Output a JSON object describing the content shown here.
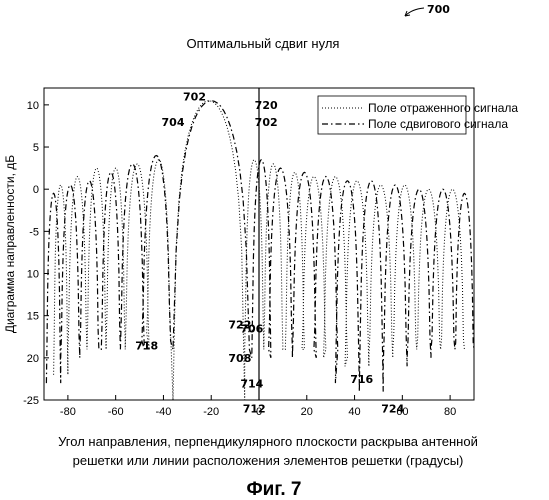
{
  "figure": {
    "ref_number": "700",
    "caption": "Фиг. 7"
  },
  "chart_data": {
    "type": "line",
    "title": "Оптимальный сдвиг нуля",
    "xlabel_line1": "Угол направления, перпендикулярного плоскости раскрыва антенной",
    "xlabel_line2": "решетки или линии расположения элементов решетки (градусы)",
    "ylabel": "Диаграмма направленности, дБ",
    "xlim": [
      -90,
      90
    ],
    "ylim": [
      -25,
      12
    ],
    "x_ticks": [
      -80,
      -60,
      -40,
      -20,
      0,
      20,
      40,
      60,
      80
    ],
    "y ticks": [
      10,
      5,
      0,
      -5,
      -10,
      -15,
      -20,
      -25
    ],
    "y_tick_labels": [
      "10",
      "5",
      "0",
      "-5",
      "10",
      "15",
      "20",
      "-25"
    ],
    "grid": false,
    "legend_position": "top-right",
    "vertical_marker_x": 0,
    "series": [
      {
        "name": "Поле отраженного сигнала",
        "style": "dotted",
        "color": "#000000",
        "main_lobe": {
          "center": -21,
          "halfwidth": 15,
          "peak": 10.5
        },
        "sidelobes": [
          {
            "x": -83,
            "peak": 0.5,
            "null_after": -80
          },
          {
            "x": -76,
            "peak": 1.5,
            "null_after": -72
          },
          {
            "x": -68,
            "peak": 2.5,
            "null_after": -64
          },
          {
            "x": -60,
            "peak": 2.5,
            "null_after": -56
          },
          {
            "x": -51,
            "peak": 3.0,
            "null_after": -46
          },
          {
            "x": -42,
            "peak": 3.5,
            "null_after": -37
          },
          {
            "x": -2,
            "peak": 3.5,
            "null_after": 2
          },
          {
            "x": 6,
            "peak": 3.0,
            "null_after": 10
          },
          {
            "x": 15,
            "peak": 2.0,
            "null_after": 19
          },
          {
            "x": 23,
            "peak": 1.5,
            "null_after": 28
          },
          {
            "x": 32,
            "peak": 1.5,
            "null_after": 37
          },
          {
            "x": 41,
            "peak": 1.0,
            "null_after": 46
          },
          {
            "x": 51,
            "peak": 0.5,
            "null_after": 56
          },
          {
            "x": 61,
            "peak": 0.5,
            "null_after": 66
          },
          {
            "x": 71,
            "peak": 0.0,
            "null_after": 76
          },
          {
            "x": 81,
            "peak": 0.0,
            "null_after": 86
          }
        ],
        "null_depths": [
          -22,
          -19,
          -19,
          -18,
          -19,
          -17,
          -25,
          -19,
          -19,
          -19,
          -19,
          -20,
          -21,
          -20,
          -19,
          -19
        ]
      },
      {
        "name": "Поле сдвигового сигнала",
        "style": "dash-dot",
        "color": "#000000",
        "main_lobe": {
          "center": -20,
          "halfwidth": 16,
          "peak": 10.5
        },
        "sidelobes": [
          {
            "x": -86,
            "peak": -0.5,
            "null_after": -83
          },
          {
            "x": -79,
            "peak": 0.5,
            "null_after": -75
          },
          {
            "x": -71,
            "peak": 1.0,
            "null_after": -67
          },
          {
            "x": -62,
            "peak": 2.0,
            "null_after": -58
          },
          {
            "x": -53,
            "peak": 3.0,
            "null_after": -48
          },
          {
            "x": -43,
            "peak": 4.0,
            "null_after": -37
          },
          {
            "x": 1,
            "peak": 3.5,
            "null_after": 5
          },
          {
            "x": 9,
            "peak": 2.5,
            "null_after": 14
          },
          {
            "x": 19,
            "peak": 2.0,
            "null_after": 24
          },
          {
            "x": 28,
            "peak": 1.5,
            "null_after": 33
          },
          {
            "x": 37,
            "peak": 1.0,
            "null_after": 42
          },
          {
            "x": 47,
            "peak": 1.0,
            "null_after": 52
          },
          {
            "x": 57,
            "peak": 0.5,
            "null_after": 62
          },
          {
            "x": 67,
            "peak": 0.0,
            "null_after": 72
          },
          {
            "x": 77,
            "peak": 0.0,
            "null_after": 82
          },
          {
            "x": 86,
            "peak": -0.5,
            "null_after": 90
          }
        ],
        "null_depths": [
          -23,
          -20,
          -19,
          -19,
          -19,
          -18,
          -19,
          -20,
          -19,
          -20,
          -19,
          -23,
          -24,
          -21,
          -20,
          -19
        ]
      }
    ],
    "annotations": [
      {
        "text": "702",
        "x": -27,
        "y": 10.5
      },
      {
        "text": "704",
        "x": -36,
        "y": 7.5
      },
      {
        "text": "720",
        "x": 3,
        "y": 9.5
      },
      {
        "text": "702",
        "x": 3,
        "y": 7.5
      },
      {
        "text": "706",
        "x": -3,
        "y": -17
      },
      {
        "text": "718",
        "x": -47,
        "y": -19
      },
      {
        "text": "722",
        "x": -8,
        "y": -16.5
      },
      {
        "text": "708",
        "x": -8,
        "y": -20.5
      },
      {
        "text": "714",
        "x": -3,
        "y": -23.5
      },
      {
        "text": "712",
        "x": -2,
        "y": -26.5
      },
      {
        "text": "716",
        "x": 43,
        "y": -23
      },
      {
        "text": "724",
        "x": 56,
        "y": -26.5
      }
    ]
  }
}
